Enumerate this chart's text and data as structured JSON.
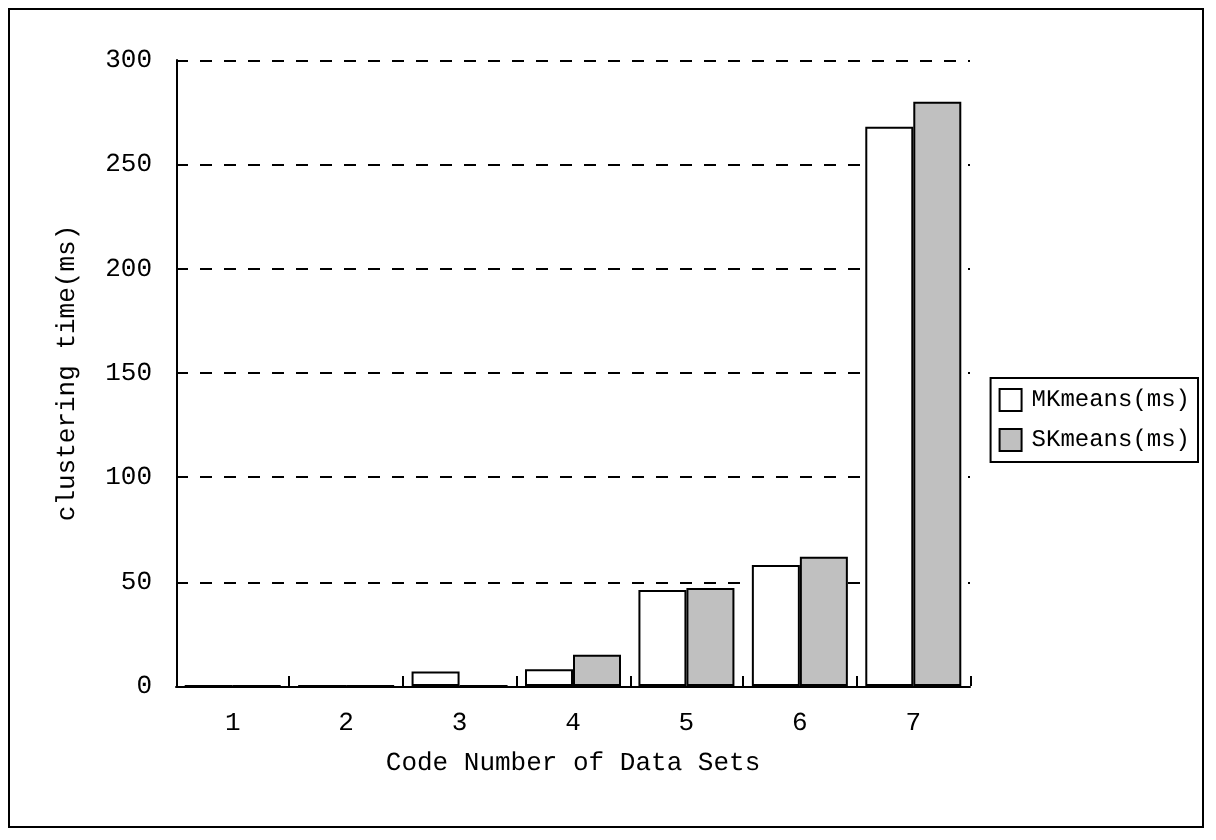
{
  "chart_data": {
    "type": "bar",
    "xlabel": "Code Number of Data Sets",
    "ylabel": "clustering time(ms)",
    "categories": [
      "1",
      "2",
      "3",
      "4",
      "5",
      "6",
      "7"
    ],
    "series": [
      {
        "name": "MKmeans(ms)",
        "color": "#ffffff",
        "values": [
          0,
          0,
          7,
          8,
          46,
          58,
          268
        ]
      },
      {
        "name": "SKmeans(ms)",
        "color": "#c0c0c0",
        "values": [
          0,
          0,
          0,
          15,
          47,
          62,
          280
        ]
      }
    ],
    "ylim": [
      0,
      300
    ],
    "yticks": [
      0,
      50,
      100,
      150,
      200,
      250,
      300
    ],
    "grid": "y",
    "legend": "right"
  }
}
